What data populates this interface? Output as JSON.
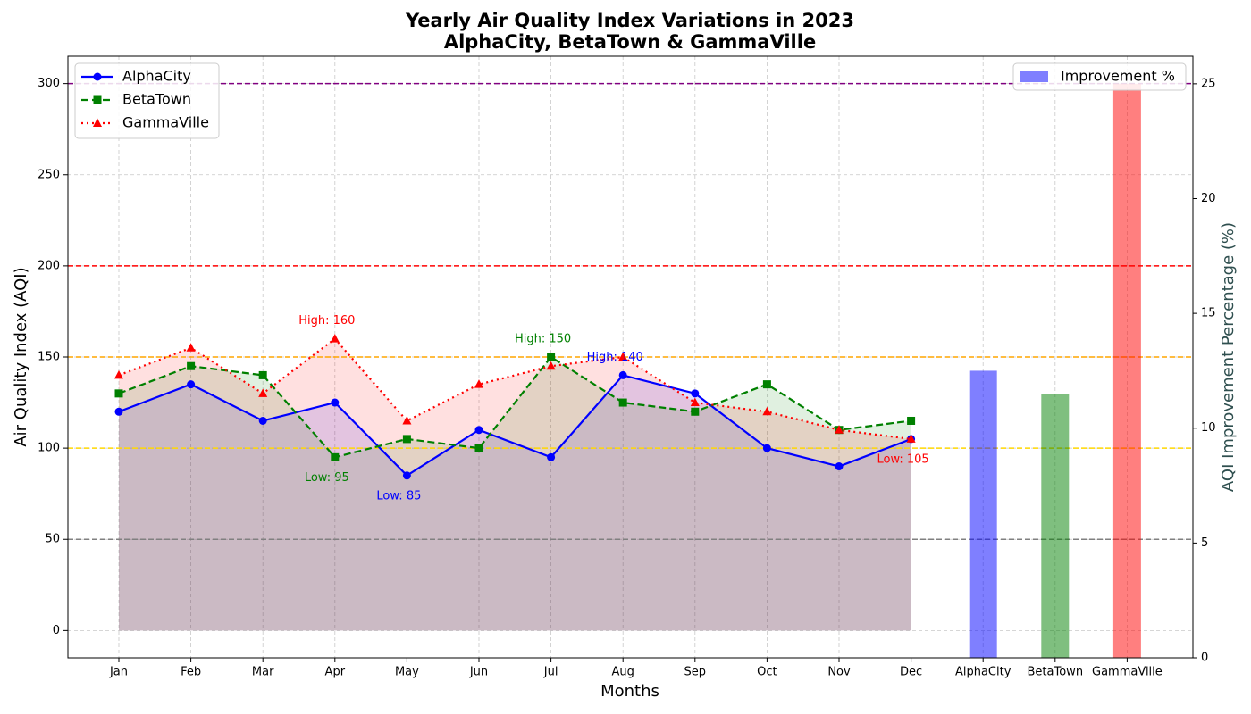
{
  "chart_data": {
    "type": "line",
    "title": [
      "Yearly Air Quality Index Variations in 2023",
      "AlphaCity, BetaTown & GammaVille"
    ],
    "xlabel": "Months",
    "ylabel": "Air Quality Index (AQI)",
    "y2label": "AQI Improvement Percentage (%)",
    "categories": [
      "Jan",
      "Feb",
      "Mar",
      "Apr",
      "May",
      "Jun",
      "Jul",
      "Aug",
      "Sep",
      "Oct",
      "Nov",
      "Dec"
    ],
    "series": [
      {
        "name": "AlphaCity",
        "color": "blue",
        "marker": "circle",
        "dash": "solid",
        "values": [
          120,
          135,
          115,
          125,
          85,
          110,
          95,
          140,
          130,
          100,
          90,
          105
        ]
      },
      {
        "name": "BetaTown",
        "color": "green",
        "marker": "square",
        "dash": "dashed",
        "values": [
          130,
          145,
          140,
          95,
          105,
          100,
          150,
          125,
          120,
          135,
          110,
          115
        ]
      },
      {
        "name": "GammaVille",
        "color": "red",
        "marker": "triangle",
        "dash": "dotted",
        "values": [
          140,
          155,
          130,
          160,
          115,
          135,
          145,
          150,
          125,
          120,
          110,
          105
        ]
      }
    ],
    "bars": {
      "type": "bar",
      "name": "Improvement %",
      "axis": "y2",
      "legend_color": "blue",
      "categories": [
        "AlphaCity",
        "BetaTown",
        "GammaVille"
      ],
      "colors": [
        "blue",
        "green",
        "red"
      ],
      "values": [
        12.5,
        11.5,
        25
      ]
    },
    "reference_lines": [
      {
        "value": 50,
        "color": "gray"
      },
      {
        "value": 100,
        "color": "gold"
      },
      {
        "value": 150,
        "color": "orange"
      },
      {
        "value": 200,
        "color": "red"
      },
      {
        "value": 300,
        "color": "purple"
      }
    ],
    "annotations": [
      {
        "text": "High: 160",
        "category": "Apr",
        "value": 160,
        "color": "red",
        "placement": "above"
      },
      {
        "text": "Low: 95",
        "category": "Apr",
        "value": 95,
        "color": "green",
        "placement": "below"
      },
      {
        "text": "Low: 85",
        "category": "May",
        "value": 85,
        "color": "blue",
        "placement": "below"
      },
      {
        "text": "High: 150",
        "category": "Jul",
        "value": 150,
        "color": "green",
        "placement": "above"
      },
      {
        "text": "High: 140",
        "category": "Aug",
        "value": 140,
        "color": "blue",
        "placement": "above"
      },
      {
        "text": "Low: 105",
        "category": "Dec",
        "value": 105,
        "color": "red",
        "placement": "below"
      }
    ],
    "ylim": [
      -15,
      315
    ],
    "yticks": [
      0,
      50,
      100,
      150,
      200,
      250,
      300
    ],
    "y2lim": [
      0,
      26.2
    ],
    "y2ticks": [
      0,
      5,
      10,
      15,
      20,
      25
    ],
    "grid": true,
    "legend": "upper left",
    "bar_legend": "upper right"
  }
}
